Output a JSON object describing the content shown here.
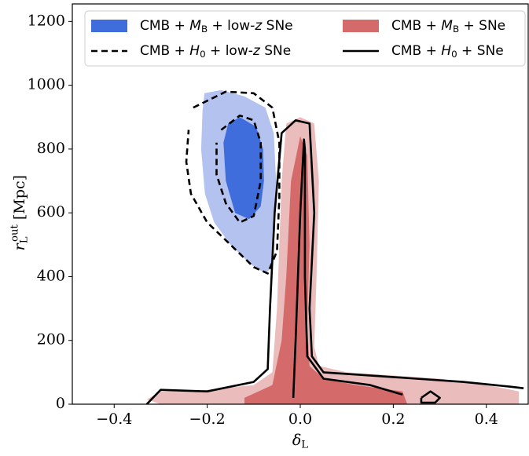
{
  "chart_data": {
    "type": "contour",
    "xlabel": [
      {
        "italic": "δ",
        "sub": "L"
      }
    ],
    "ylabel": [
      {
        "italic": "r",
        "sub": "L",
        "sup": "out"
      },
      " [Mpc]"
    ],
    "xlim": [
      -0.49,
      0.49
    ],
    "ylim": [
      0,
      1255
    ],
    "xticks": [
      {
        "value": -0.4,
        "label": "−0.4"
      },
      {
        "value": -0.2,
        "label": "−0.2"
      },
      {
        "value": 0,
        "label": "0.0"
      },
      {
        "value": 0.2,
        "label": "0.2"
      },
      {
        "value": 0.4,
        "label": "0.4"
      }
    ],
    "yticks": [
      0,
      200,
      400,
      600,
      800,
      1000,
      1200
    ],
    "legend": "upper center",
    "series": [
      {
        "name": [
          "CMB + ",
          {
            "italic": "M",
            "sub": "B"
          },
          " + low-",
          {
            "italic": "z"
          },
          " SNe"
        ],
        "style": "filled",
        "colors": [
          "#b3c2ef",
          "#3f6ddc"
        ],
        "contours": [
          {
            "x": [
              -0.206,
              -0.17,
              -0.12,
              -0.075,
              -0.057,
              -0.052,
              -0.054,
              -0.06,
              -0.075,
              -0.108,
              -0.15,
              -0.185,
              -0.205,
              -0.213,
              -0.21
            ],
            "y": [
              975,
              985,
              965,
              930,
              850,
              700,
              550,
              430,
              410,
              440,
              500,
              570,
              660,
              800,
              920
            ]
          },
          {
            "x": [
              -0.155,
              -0.13,
              -0.095,
              -0.08,
              -0.078,
              -0.085,
              -0.11,
              -0.14,
              -0.16,
              -0.165
            ],
            "y": [
              880,
              900,
              870,
              800,
              700,
              620,
              580,
              600,
              700,
              820
            ]
          }
        ]
      },
      {
        "name": [
          "CMB + ",
          {
            "italic": "M",
            "sub": "B"
          },
          " + SNe"
        ],
        "style": "filled",
        "colors": [
          "#ebbcbc",
          "#d46a6a"
        ],
        "contours": [
          {
            "x": [
              -0.3,
              -0.2,
              -0.1,
              -0.06,
              -0.05,
              -0.04,
              -0.03,
              0,
              0.03,
              0.04,
              0.035,
              0.03,
              0.04,
              0.1,
              0.2,
              0.3,
              0.42,
              0.47,
              0.47,
              0.3,
              0,
              -0.3,
              -0.33
            ],
            "y": [
              40,
              45,
              60,
              100,
              300,
              700,
              880,
              900,
              880,
              700,
              400,
              180,
              120,
              100,
              90,
              80,
              55,
              40,
              0,
              0,
              0,
              0,
              15
            ]
          },
          {
            "x": [
              -0.12,
              -0.06,
              -0.04,
              -0.03,
              -0.02,
              0,
              0.015,
              0.02,
              0.015,
              0.02,
              0.05,
              0.12,
              0.22,
              0.23,
              0,
              -0.12
            ],
            "y": [
              20,
              60,
              200,
              400,
              700,
              840,
              780,
              500,
              250,
              120,
              80,
              60,
              40,
              0,
              0,
              0
            ]
          }
        ]
      },
      {
        "name": [
          "CMB + ",
          {
            "italic": "H",
            "sub": "0"
          },
          " + low-",
          {
            "italic": "z"
          },
          " SNe"
        ],
        "style": "dashed",
        "color": "#000000",
        "contours": [
          {
            "x": [
              -0.23,
              -0.16,
              -0.1,
              -0.06,
              -0.045,
              -0.045,
              -0.05,
              -0.07,
              -0.1,
              -0.15,
              -0.2,
              -0.235,
              -0.245,
              -0.24
            ],
            "y": [
              930,
              980,
              975,
              930,
              820,
              650,
              480,
              410,
              430,
              500,
              570,
              660,
              760,
              860
            ]
          },
          {
            "x": [
              -0.17,
              -0.13,
              -0.1,
              -0.085,
              -0.085,
              -0.1,
              -0.13,
              -0.16,
              -0.18,
              -0.18
            ],
            "y": [
              860,
              905,
              890,
              820,
              700,
              590,
              570,
              630,
              720,
              820
            ]
          }
        ]
      },
      {
        "name": [
          "CMB + ",
          {
            "italic": "H",
            "sub": "0"
          },
          " + SNe"
        ],
        "style": "solid",
        "color": "#000000",
        "contours": [
          {
            "x": [
              -0.33,
              -0.3,
              -0.2,
              -0.1,
              -0.07,
              -0.065,
              -0.055,
              -0.04,
              -0.01,
              0.02,
              0.03,
              0.02,
              0.025,
              0.05,
              0.15,
              0.25,
              0.35,
              0.45,
              0.48,
              null,
              0.26,
              0.28,
              0.3,
              0.29,
              0.26,
              0.26
            ],
            "y": [
              0,
              45,
              40,
              70,
              110,
              300,
              600,
              850,
              890,
              880,
              600,
              300,
              150,
              100,
              90,
              80,
              70,
              55,
              50,
              null,
              20,
              40,
              20,
              5,
              5,
              20
            ]
          },
          {
            "x": [
              -0.015,
              -0.01,
              0,
              0.008,
              0.01,
              0.01,
              0.015,
              0.05,
              0.15,
              0.22
            ],
            "y": [
              20,
              200,
              600,
              830,
              800,
              400,
              150,
              80,
              60,
              30
            ]
          }
        ]
      }
    ]
  }
}
